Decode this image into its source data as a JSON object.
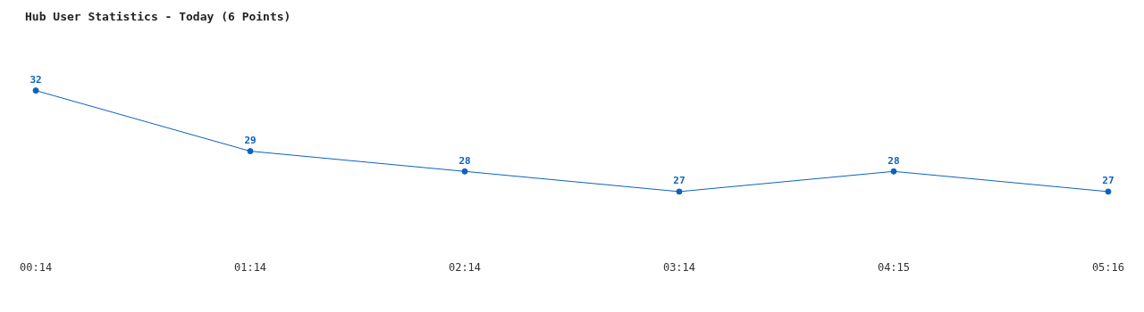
{
  "chart_data": {
    "type": "line",
    "title": "Hub User Statistics - Today (6 Points)",
    "categories": [
      "00:14",
      "01:14",
      "02:14",
      "03:14",
      "04:15",
      "05:16"
    ],
    "values": [
      32,
      29,
      28,
      27,
      28,
      27
    ],
    "color": "#0a62c2",
    "marker": "circle",
    "data_labels": true
  }
}
